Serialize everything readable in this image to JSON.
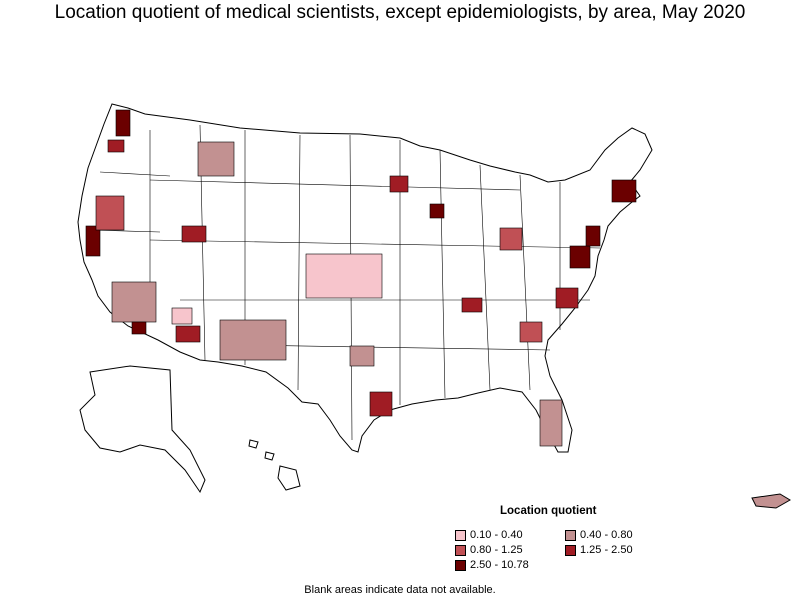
{
  "title": "Location quotient of medical scientists, except epidemiologists, by area, May 2020",
  "legend": {
    "title": "Location quotient",
    "items": [
      {
        "label": "0.10 - 0.40",
        "color": "#f7c5cc"
      },
      {
        "label": "0.40 - 0.80",
        "color": "#c29191"
      },
      {
        "label": "0.80 - 1.25",
        "color": "#c05055"
      },
      {
        "label": "1.25 - 2.50",
        "color": "#a01c24"
      },
      {
        "label": "2.50 - 10.78",
        "color": "#6b0000"
      }
    ]
  },
  "note": "Blank areas indicate data not available.",
  "colors": {
    "outline": "#000000",
    "no_data": "#ffffff"
  }
}
